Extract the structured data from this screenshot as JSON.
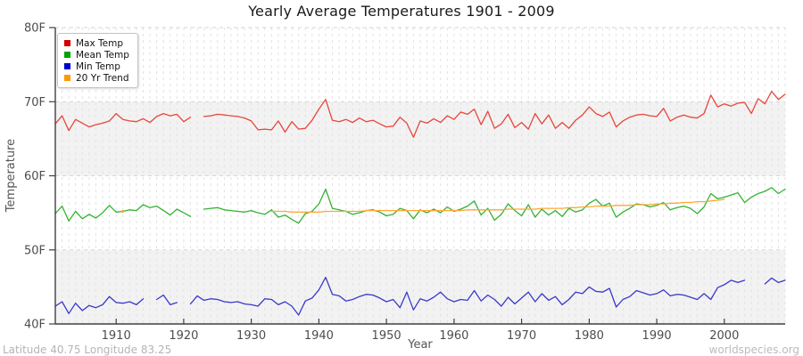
{
  "title": "Yearly Average Temperatures 1901 - 2009",
  "footer": {
    "left": "Latitude 40.75 Longitude 83.25",
    "right": "worldspecies.org"
  },
  "colors": {
    "band_fill": "#f2f2f2",
    "grid_vertical": "#e2e2e2",
    "grid_horizontal": "#d6d6d6",
    "axis": "#404040",
    "tick_text": "#4d4d4d"
  },
  "chart_data": {
    "type": "line",
    "title": "Yearly Average Temperatures 1901 - 2009",
    "xlabel": "Year",
    "ylabel": "Temperature",
    "x_start": 1901,
    "x_end": 2009,
    "x_ticks": [
      1910,
      1920,
      1930,
      1940,
      1950,
      1960,
      1970,
      1980,
      1990,
      2000
    ],
    "ylim": [
      40,
      80
    ],
    "y_ticks": [
      40,
      50,
      60,
      70,
      80
    ],
    "y_tick_labels": [
      "40F",
      "50F",
      "60F",
      "70F",
      "80F"
    ],
    "grid": true,
    "legend_position": "top-left",
    "shaded_bands": [
      [
        40,
        50
      ],
      [
        60,
        70
      ]
    ],
    "series": [
      {
        "name": "Max Temp",
        "color": "#e8463c",
        "legend_color": "#d40000",
        "values": [
          67.0,
          68.1,
          66.1,
          67.6,
          67.1,
          66.6,
          66.9,
          67.1,
          67.4,
          68.4,
          67.6,
          67.4,
          67.3,
          67.7,
          67.2,
          68.0,
          68.4,
          68.1,
          68.3,
          67.3,
          67.9,
          null,
          68.0,
          68.1,
          68.3,
          68.2,
          68.1,
          68.0,
          67.8,
          67.4,
          66.2,
          66.3,
          66.2,
          67.4,
          65.9,
          67.3,
          66.3,
          66.4,
          67.5,
          69.0,
          70.3,
          67.5,
          67.3,
          67.6,
          67.2,
          67.8,
          67.3,
          67.5,
          67.0,
          66.6,
          66.7,
          67.9,
          67.1,
          65.2,
          67.4,
          67.1,
          67.7,
          67.2,
          68.1,
          67.6,
          68.6,
          68.3,
          69.0,
          66.9,
          68.7,
          66.4,
          67.0,
          68.3,
          66.5,
          67.2,
          66.3,
          68.4,
          67.0,
          68.2,
          66.4,
          67.2,
          66.4,
          67.5,
          68.2,
          69.3,
          68.4,
          68.0,
          68.6,
          66.6,
          67.4,
          67.9,
          68.2,
          68.3,
          68.1,
          68.0,
          69.1,
          67.4,
          67.9,
          68.2,
          67.9,
          67.8,
          68.4,
          70.9,
          69.3,
          69.7,
          69.4,
          69.8,
          69.9,
          68.4,
          70.4,
          69.7,
          71.4,
          70.3,
          71.0
        ]
      },
      {
        "name": "Mean Temp",
        "color": "#33b333",
        "legend_color": "#00a400",
        "values": [
          54.9,
          55.9,
          53.9,
          55.2,
          54.2,
          54.8,
          54.3,
          55.0,
          56.0,
          55.1,
          55.2,
          55.4,
          55.3,
          56.1,
          55.7,
          55.9,
          55.3,
          54.7,
          55.5,
          55.0,
          54.5,
          null,
          55.5,
          55.6,
          55.7,
          55.4,
          55.3,
          55.2,
          55.1,
          55.3,
          55.0,
          54.8,
          55.4,
          54.4,
          54.7,
          54.1,
          53.6,
          54.9,
          55.2,
          56.2,
          58.2,
          55.6,
          55.4,
          55.2,
          54.8,
          55.0,
          55.3,
          55.4,
          55.1,
          54.6,
          54.8,
          55.6,
          55.3,
          54.2,
          55.4,
          55.0,
          55.5,
          55.0,
          55.8,
          55.2,
          55.5,
          55.9,
          56.6,
          54.7,
          55.6,
          54.0,
          54.8,
          56.2,
          55.3,
          54.6,
          56.1,
          54.4,
          55.5,
          54.7,
          55.3,
          54.5,
          55.6,
          55.1,
          55.4,
          56.3,
          56.8,
          55.9,
          56.3,
          54.4,
          55.1,
          55.6,
          56.2,
          56.1,
          55.8,
          56.0,
          56.4,
          55.4,
          55.7,
          55.9,
          55.6,
          54.9,
          55.8,
          57.6,
          56.9,
          57.1,
          57.4,
          57.7,
          56.4,
          57.1,
          57.6,
          57.9,
          58.4,
          57.6,
          58.2
        ]
      },
      {
        "name": "Min Temp",
        "color": "#3939cc",
        "legend_color": "#0000cc",
        "values": [
          42.4,
          43.0,
          41.4,
          42.8,
          41.8,
          42.5,
          42.2,
          42.6,
          43.7,
          42.9,
          42.8,
          43.0,
          42.6,
          43.4,
          null,
          43.3,
          43.9,
          42.6,
          42.9,
          null,
          42.7,
          43.8,
          43.2,
          43.4,
          43.3,
          43.0,
          42.9,
          43.0,
          42.7,
          42.6,
          42.4,
          43.4,
          43.3,
          42.6,
          43.0,
          42.4,
          41.2,
          43.1,
          43.5,
          44.6,
          46.3,
          44.0,
          43.8,
          43.1,
          43.3,
          43.7,
          44.0,
          43.9,
          43.5,
          43.0,
          43.3,
          42.2,
          44.3,
          41.9,
          43.4,
          43.1,
          43.6,
          44.3,
          43.4,
          43.0,
          43.3,
          43.2,
          44.5,
          43.1,
          43.9,
          43.3,
          42.4,
          43.6,
          42.7,
          43.5,
          44.3,
          43.0,
          44.1,
          43.2,
          43.7,
          42.6,
          43.3,
          44.3,
          44.1,
          45.0,
          44.4,
          44.3,
          44.8,
          42.3,
          43.3,
          43.7,
          44.5,
          44.2,
          43.9,
          44.1,
          44.6,
          43.8,
          44.0,
          43.9,
          43.6,
          43.3,
          44.1,
          43.3,
          44.9,
          45.3,
          45.9,
          45.6,
          45.9,
          null,
          null,
          45.4,
          46.2,
          45.6,
          45.9
        ]
      },
      {
        "name": "20 Yr Trend",
        "color": "#ffa733",
        "legend_color": "#ff9900",
        "values": [
          null,
          null,
          null,
          null,
          null,
          null,
          null,
          null,
          null,
          null,
          55.2,
          null,
          null,
          null,
          null,
          null,
          null,
          null,
          null,
          null,
          null,
          null,
          null,
          null,
          null,
          null,
          null,
          null,
          null,
          null,
          null,
          null,
          55.2,
          55.2,
          55.2,
          55.1,
          55.1,
          55.1,
          55.1,
          55.1,
          55.2,
          55.2,
          55.2,
          55.2,
          55.2,
          55.2,
          55.3,
          55.3,
          55.3,
          55.3,
          55.3,
          55.3,
          55.3,
          55.3,
          55.3,
          55.3,
          55.3,
          55.3,
          55.3,
          55.3,
          55.3,
          55.4,
          55.4,
          55.4,
          55.4,
          55.4,
          55.4,
          55.5,
          55.5,
          55.5,
          55.5,
          55.5,
          55.6,
          55.6,
          55.6,
          55.6,
          55.7,
          55.7,
          55.8,
          55.8,
          55.9,
          55.9,
          55.9,
          56.0,
          56.0,
          56.0,
          56.1,
          56.1,
          56.1,
          56.2,
          56.2,
          56.3,
          56.3,
          56.4,
          56.4,
          56.5,
          56.5,
          56.6,
          56.7,
          56.8,
          null,
          null,
          null,
          null,
          null,
          null,
          null,
          null,
          null
        ]
      }
    ]
  }
}
